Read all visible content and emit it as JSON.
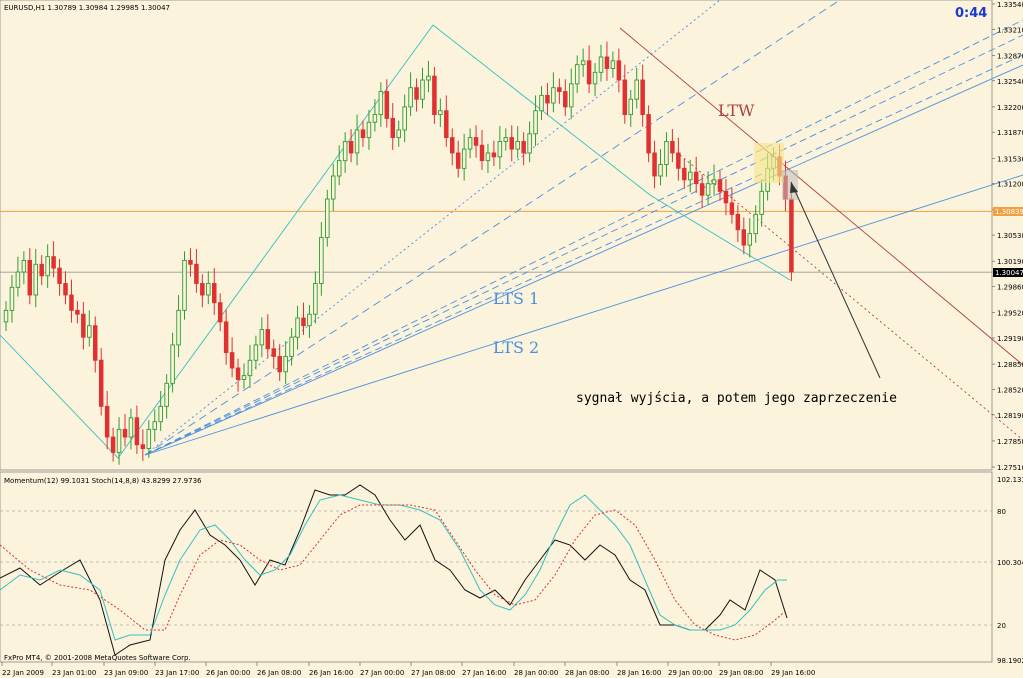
{
  "header": {
    "symbol_text": "EURUSD,H1  1.30789 1.30984 1.29985 1.30047",
    "timer": "0:44"
  },
  "main_chart": {
    "price_labels": [
      "1.33540",
      "1.33210",
      "1.32870",
      "1.32540",
      "1.32200",
      "1.31870",
      "1.31530",
      "1.31200",
      "1.30860",
      "1.30530",
      "1.30190",
      "1.29860",
      "1.29520",
      "1.29190",
      "1.28850",
      "1.28520",
      "1.28190",
      "1.27850",
      "1.27510"
    ],
    "current_price_tag": "1.30047",
    "level_tag": "1.30839",
    "annotations": {
      "ltw": "LTW",
      "lts1": "LTS 1",
      "lts2": "LTS 2",
      "comment": "sygnał wyjścia, a potem jego zaprzeczenie"
    },
    "colors": {
      "background": "#fbf3dc",
      "bull_candle": "#2e9e2e",
      "bear_candle": "#e03030",
      "zigzag": "#36c0c0",
      "trend_blue": "#4a8fe0",
      "ltw_line": "#b04040",
      "level_line": "#f0a040"
    }
  },
  "indicator": {
    "label": "Momentum(12) 99.1031  Stoch(14,8,8) 43.8299 27.9736",
    "scale_labels": [
      "102.1335",
      "80",
      "100.3048",
      "20",
      "98.1902"
    ]
  },
  "x_axis": {
    "labels": [
      "22 Jan 2009",
      "23 Jan 01:00",
      "23 Jan 09:00",
      "23 Jan 17:00",
      "26 Jan 00:00",
      "26 Jan 08:00",
      "26 Jan 16:00",
      "27 Jan 00:00",
      "27 Jan 08:00",
      "27 Jan 16:00",
      "28 Jan 00:00",
      "28 Jan 08:00",
      "28 Jan 16:00",
      "29 Jan 00:00",
      "29 Jan 08:00",
      "29 Jan 16:00"
    ]
  },
  "footer": {
    "copyright": "FxPro MT4, © 2001-2008 MetaQuotes Software Corp."
  },
  "chart_data": {
    "type": "candlestick",
    "title": "EURUSD,H1",
    "symbol": "EURUSD",
    "timeframe": "H1",
    "ylim": [
      1.2751,
      1.3354
    ],
    "last": 1.30047,
    "horizontal_level": 1.30839,
    "candles_close": [
      1.2955,
      1.2985,
      1.3005,
      1.302,
      1.2975,
      1.3015,
      1.3,
      1.3025,
      1.301,
      1.299,
      1.2975,
      1.2955,
      1.295,
      1.292,
      1.2935,
      1.289,
      1.283,
      1.279,
      1.277,
      1.28,
      1.279,
      1.2815,
      1.278,
      1.2775,
      1.28,
      1.281,
      1.283,
      1.286,
      1.291,
      1.2955,
      1.302,
      1.3015,
      1.299,
      1.2975,
      1.299,
      1.2965,
      1.294,
      1.29,
      1.288,
      1.2865,
      1.287,
      1.289,
      1.291,
      1.293,
      1.2905,
      1.2895,
      1.2875,
      1.2895,
      1.292,
      1.2945,
      1.2935,
      1.295,
      1.299,
      1.305,
      1.31,
      1.313,
      1.315,
      1.3175,
      1.316,
      1.319,
      1.318,
      1.32,
      1.321,
      1.324,
      1.3205,
      1.318,
      1.319,
      1.322,
      1.3245,
      1.323,
      1.3255,
      1.326,
      1.321,
      1.3215,
      1.318,
      1.316,
      1.314,
      1.3165,
      1.318,
      1.317,
      1.315,
      1.316,
      1.3155,
      1.3175,
      1.318,
      1.3165,
      1.3175,
      1.316,
      1.3185,
      1.3215,
      1.3235,
      1.3225,
      1.3245,
      1.324,
      1.322,
      1.325,
      1.3275,
      1.328,
      1.325,
      1.3265,
      1.3285,
      1.327,
      1.328,
      1.3255,
      1.321,
      1.323,
      1.3255,
      1.321,
      1.316,
      1.313,
      1.3145,
      1.3175,
      1.316,
      1.314,
      1.3125,
      1.3135,
      1.312,
      1.3105,
      1.312,
      1.3125,
      1.311,
      1.3095,
      1.308,
      1.306,
      1.304,
      1.3055,
      1.308,
      1.311,
      1.314,
      1.3155,
      1.313,
      1.31,
      1.3005
    ],
    "indicator_momentum": {
      "name": "Momentum(12)",
      "last": 99.1031,
      "ylim": [
        98.1902,
        102.1335
      ]
    },
    "indicator_stoch": {
      "name": "Stoch(14,8,8)",
      "main_last": 43.8299,
      "signal_last": 27.9736,
      "levels": [
        20,
        80
      ]
    },
    "annotations": [
      "LTW",
      "LTS 1",
      "LTS 2",
      "sygnał wyjścia, a potem jego zaprzeczenie"
    ]
  }
}
